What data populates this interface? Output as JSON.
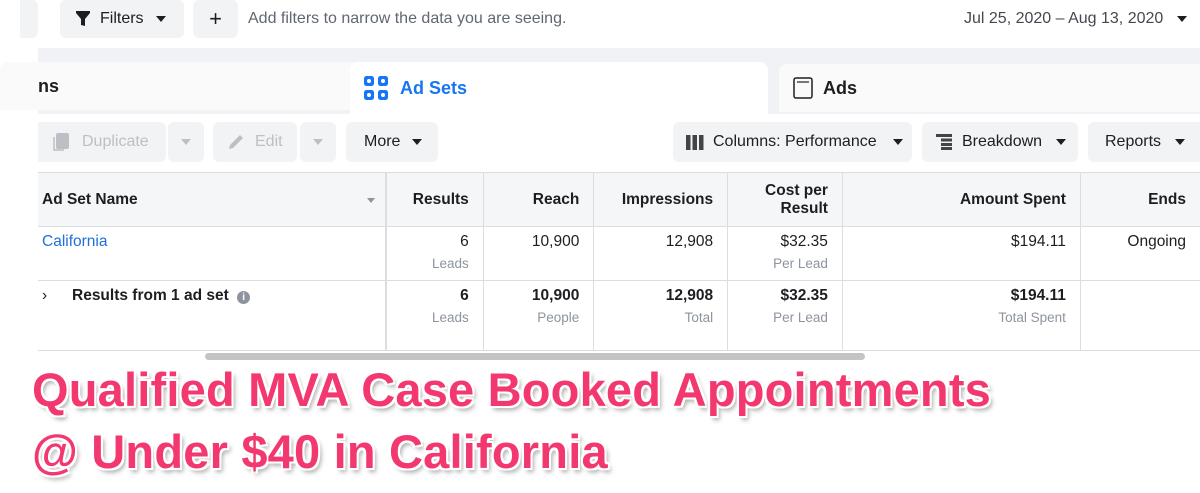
{
  "filterbar": {
    "filters_label": "Filters",
    "add_label": "+",
    "hint": "Add filters to narrow the data you are seeing.",
    "date_range": "Jul 25, 2020 – Aug 13, 2020"
  },
  "tabs": [
    {
      "label": "ns"
    },
    {
      "label": "Ad Sets",
      "active": true
    },
    {
      "label": "Ads"
    }
  ],
  "toolbar": {
    "duplicate": "Duplicate",
    "edit": "Edit",
    "more": "More",
    "columns": "Columns: Performance",
    "breakdown": "Breakdown",
    "reports": "Reports"
  },
  "table": {
    "headers": {
      "name": "Ad Set Name",
      "results": "Results",
      "reach": "Reach",
      "impressions": "Impressions",
      "cost": "Cost per Result",
      "amount": "Amount Spent",
      "ends": "Ends"
    },
    "rows": [
      {
        "name": "California",
        "results": "6",
        "results_sub": "Leads",
        "reach": "10,900",
        "impressions": "12,908",
        "cost": "$32.35",
        "cost_sub": "Per Lead",
        "amount": "$194.11",
        "ends": "Ongoing"
      }
    ],
    "total": {
      "name": "Results from 1 ad set",
      "results": "6",
      "results_sub": "Leads",
      "reach": "10,900",
      "reach_sub": "People",
      "impressions": "12,908",
      "impressions_sub": "Total",
      "cost": "$32.35",
      "cost_sub": "Per Lead",
      "amount": "$194.11",
      "amount_sub": "Total Spent"
    }
  },
  "overlay": {
    "line1": "Qualified MVA Case Booked Appointments",
    "line2": "@ Under $40 in California",
    "color": "#f2386e"
  },
  "colors": {
    "accent": "#1877f2",
    "link": "#216fdb"
  }
}
